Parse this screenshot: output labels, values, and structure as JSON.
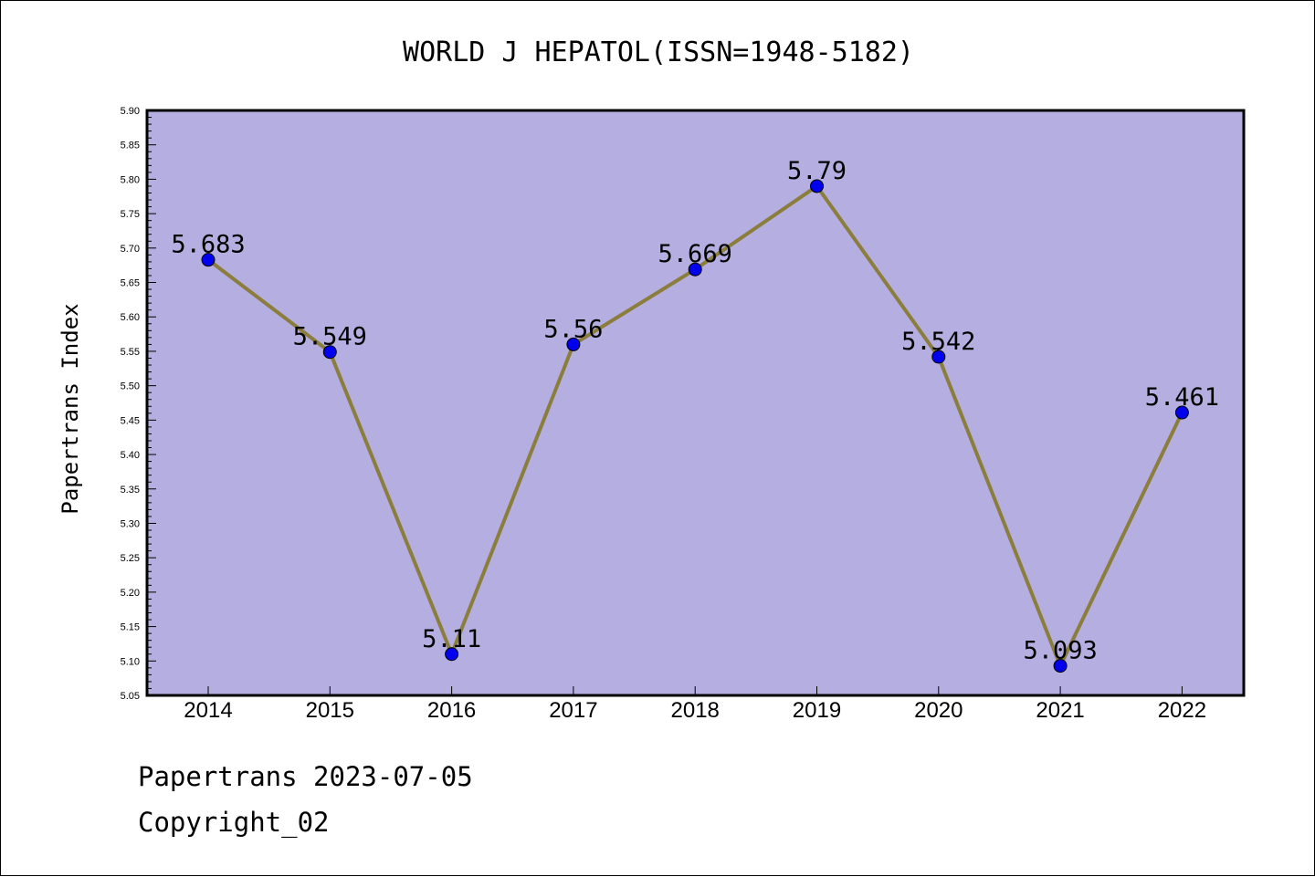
{
  "chart_data": {
    "type": "line",
    "title": "WORLD J HEPATOL(ISSN=1948-5182)",
    "ylabel": "Papertrans Index",
    "xlabel": "",
    "categories": [
      "2014",
      "2015",
      "2016",
      "2017",
      "2018",
      "2019",
      "2020",
      "2021",
      "2022"
    ],
    "values": [
      5.683,
      5.549,
      5.11,
      5.56,
      5.669,
      5.79,
      5.542,
      5.093,
      5.461
    ],
    "data_labels": [
      "5.683",
      "5.549",
      "5.11",
      "5.56",
      "5.669",
      "5.79",
      "5.542",
      "5.093",
      "5.461"
    ],
    "ylim": [
      5.05,
      5.9
    ],
    "yticks": [
      "5.05",
      "5.10",
      "5.15",
      "5.20",
      "5.25",
      "5.30",
      "5.35",
      "5.40",
      "5.45",
      "5.50",
      "5.55",
      "5.60",
      "5.65",
      "5.70",
      "5.75",
      "5.80",
      "5.85",
      "5.90"
    ],
    "grid": false,
    "colors": {
      "plot_background": "#b5aee1",
      "line": "#8b7d3c",
      "marker": "#0000ee"
    }
  },
  "footer": {
    "line1": "Papertrans 2023-07-05",
    "line2": "Copyright_02"
  }
}
